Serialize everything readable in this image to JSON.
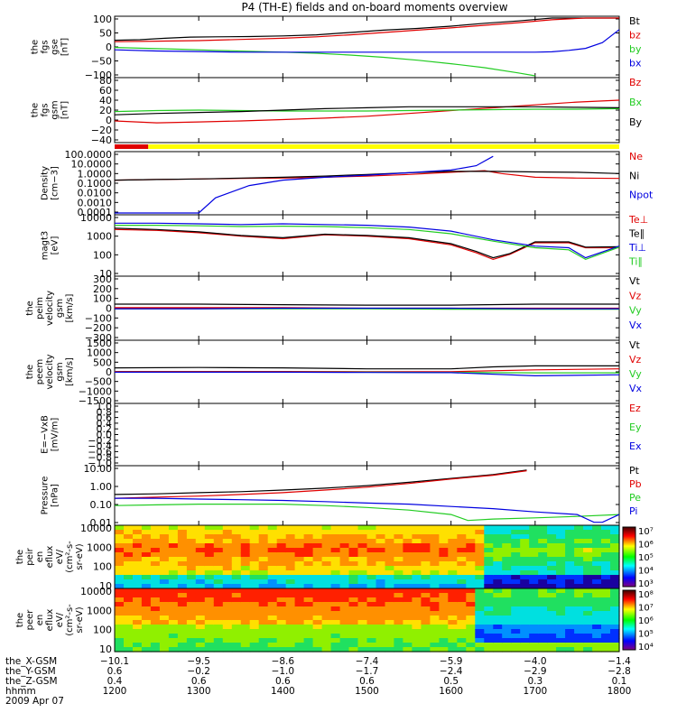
{
  "title": "P4 (TH-E) fields and on-board moments overview",
  "colors": {
    "black": "#000000",
    "red": "#e00000",
    "green": "#22cc22",
    "blue": "#0000e0",
    "yellow": "#ffff00"
  },
  "chart_data": [
    {
      "type": "line",
      "panel": "fgs-gse",
      "ylabel": [
        "the",
        "fgs",
        "gse",
        "[nT]"
      ],
      "ylim": [
        -100,
        100
      ],
      "yticks": [
        "100",
        "50",
        "0",
        "−50",
        "−100"
      ],
      "series": [
        {
          "name": "Bt",
          "color": "#000000",
          "x": [
            1200,
            1230,
            1260,
            1290,
            1320,
            1360,
            1400,
            1440,
            1480,
            1520,
            1560,
            1600,
            1640,
            1680,
            1720,
            1760,
            1790,
            1800
          ],
          "values": [
            23,
            25,
            30,
            34,
            35,
            36,
            38,
            42,
            50,
            58,
            64,
            72,
            82,
            90,
            100,
            110,
            118,
            120
          ]
        },
        {
          "name": "bz",
          "color": "#e00000",
          "x": [
            1200,
            1250,
            1300,
            1350,
            1400,
            1440,
            1480,
            1520,
            1560,
            1600,
            1640,
            1680,
            1720,
            1760,
            1800
          ],
          "values": [
            18,
            20,
            22,
            26,
            30,
            35,
            42,
            50,
            58,
            66,
            75,
            84,
            94,
            104,
            115
          ]
        },
        {
          "name": "by",
          "color": "#22cc22",
          "x": [
            1200,
            1240,
            1280,
            1320,
            1360,
            1400,
            1440,
            1480,
            1520,
            1560,
            1600,
            1640,
            1680,
            1700
          ],
          "values": [
            -2,
            -5,
            -8,
            -12,
            -15,
            -18,
            -22,
            -28,
            -36,
            -46,
            -58,
            -72,
            -90,
            -100
          ]
        },
        {
          "name": "bx",
          "color": "#0000e0",
          "x": [
            1200,
            1250,
            1300,
            1350,
            1400,
            1450,
            1500,
            1550,
            1600,
            1650,
            1700,
            1720,
            1740,
            1760,
            1780,
            1800
          ],
          "values": [
            -10,
            -14,
            -16,
            -18,
            -18,
            -18,
            -18,
            -18,
            -18,
            -18,
            -18,
            -17,
            -12,
            -5,
            15,
            60
          ]
        }
      ]
    },
    {
      "type": "line",
      "panel": "fgs-gsm",
      "ylabel": [
        "the",
        "fgs",
        "gsm",
        "[nT]"
      ],
      "ylim": [
        -50,
        80
      ],
      "yticks": [
        "80",
        "60",
        "40",
        "20",
        "0",
        "−20",
        "−40"
      ],
      "series": [
        {
          "name": "Bz",
          "color": "#e00000",
          "x": [
            1200,
            1250,
            1300,
            1350,
            1400,
            1450,
            1500,
            1550,
            1600,
            1650,
            1700,
            1750,
            1800
          ],
          "values": [
            -8,
            -12,
            -10,
            -8,
            -5,
            -2,
            2,
            8,
            14,
            20,
            26,
            32,
            36
          ]
        },
        {
          "name": "Bx",
          "color": "#22cc22",
          "x": [
            1200,
            1250,
            1300,
            1350,
            1400,
            1450,
            1500,
            1550,
            1600,
            1650,
            1700,
            1750,
            1800
          ],
          "values": [
            12,
            14,
            15,
            14,
            13,
            13,
            13,
            14,
            15,
            16,
            17,
            17,
            18
          ]
        },
        {
          "name": "By",
          "color": "#000000",
          "x": [
            1200,
            1250,
            1300,
            1350,
            1400,
            1450,
            1500,
            1550,
            1600,
            1650,
            1700,
            1750,
            1800
          ],
          "values": [
            5,
            8,
            10,
            12,
            15,
            18,
            20,
            22,
            22,
            22,
            22,
            21,
            20
          ]
        }
      ]
    },
    {
      "type": "line",
      "panel": "density",
      "log": true,
      "ylabel": [
        "Density",
        "[cm−3]"
      ],
      "ylim": [
        0.0001,
        200
      ],
      "yticks": [
        "100.0000",
        "10.0000",
        "1.0000",
        "0.1000",
        "0.0100",
        "0.0010",
        "0.0001"
      ],
      "series": [
        {
          "name": "Ne",
          "color": "#e00000",
          "x": [
            1200,
            1250,
            1300,
            1350,
            1400,
            1450,
            1500,
            1550,
            1600,
            1640,
            1660,
            1700,
            1750,
            1800
          ],
          "values": [
            0.3,
            0.35,
            0.4,
            0.45,
            0.5,
            0.6,
            0.8,
            1.2,
            2,
            3,
            1.5,
            0.6,
            0.5,
            0.45
          ]
        },
        {
          "name": "Ni",
          "color": "#000000",
          "x": [
            1200,
            1250,
            1300,
            1350,
            1400,
            1450,
            1500,
            1550,
            1600,
            1650,
            1700,
            1750,
            1800
          ],
          "values": [
            0.3,
            0.35,
            0.4,
            0.5,
            0.6,
            0.8,
            1.2,
            1.8,
            2.5,
            2.5,
            2.2,
            2.0,
            1.5
          ]
        },
        {
          "name": "Npot",
          "color": "#0000e0",
          "x": [
            1200,
            1260,
            1300,
            1320,
            1360,
            1400,
            1450,
            1500,
            1550,
            1600,
            1630,
            1650
          ],
          "values": [
            0.0001,
            0.0001,
            0.0001,
            0.004,
            0.08,
            0.3,
            0.6,
            1.0,
            1.8,
            3.5,
            10,
            100
          ]
        }
      ]
    },
    {
      "type": "line",
      "panel": "temperature",
      "log": true,
      "ylabel": [
        "magt3",
        "[eV]"
      ],
      "ylim": [
        5,
        15000
      ],
      "yticks": [
        "10000",
        "1000",
        "100",
        "10"
      ],
      "series": [
        {
          "name": "Te⊥",
          "color": "#e00000",
          "x": [
            1200,
            1250,
            1300,
            1350,
            1400,
            1450,
            1500,
            1550,
            1600,
            1630,
            1650,
            1670,
            1700,
            1740,
            1760,
            1800
          ],
          "values": [
            2500,
            2200,
            1600,
            1000,
            700,
            1200,
            1000,
            700,
            300,
            100,
            40,
            80,
            400,
            400,
            200,
            200
          ]
        },
        {
          "name": "Te∥",
          "color": "#000000",
          "x": [
            1200,
            1250,
            1300,
            1350,
            1400,
            1450,
            1500,
            1550,
            1600,
            1630,
            1650,
            1670,
            1700,
            1740,
            1760,
            1800
          ],
          "values": [
            3000,
            2500,
            1800,
            1100,
            800,
            1300,
            1100,
            800,
            350,
            120,
            50,
            90,
            450,
            450,
            220,
            230
          ]
        },
        {
          "name": "Ti⊥",
          "color": "#0000e0",
          "x": [
            1200,
            1250,
            1300,
            1350,
            1400,
            1450,
            1500,
            1550,
            1600,
            1650,
            1700,
            1740,
            1760,
            1800
          ],
          "values": [
            6000,
            6000,
            5500,
            5000,
            5500,
            5000,
            4500,
            3500,
            2000,
            600,
            250,
            200,
            50,
            250
          ]
        },
        {
          "name": "Ti∥",
          "color": "#22cc22",
          "x": [
            1200,
            1250,
            1300,
            1350,
            1400,
            1450,
            1500,
            1550,
            1600,
            1650,
            1700,
            1740,
            1760,
            1800
          ],
          "values": [
            4500,
            4500,
            4200,
            3800,
            4000,
            3800,
            3200,
            2500,
            1400,
            500,
            200,
            150,
            40,
            220
          ]
        }
      ]
    },
    {
      "type": "line",
      "panel": "peim-velocity",
      "ylabel": [
        "the",
        "peim",
        "velocity",
        "gsm",
        "[km/s]"
      ],
      "ylim": [
        -300,
        300
      ],
      "yticks": [
        "300",
        "200",
        "100",
        "0",
        "−100",
        "−200",
        "−300"
      ],
      "series": [
        {
          "name": "Vt",
          "color": "#000000",
          "x": [
            1200,
            1300,
            1400,
            1500,
            1600,
            1700,
            1800
          ],
          "values": [
            40,
            40,
            35,
            30,
            30,
            40,
            40
          ]
        },
        {
          "name": "Vz",
          "color": "#e00000",
          "x": [
            1200,
            1300,
            1400,
            1500,
            1600,
            1700,
            1800
          ],
          "values": [
            5,
            5,
            5,
            0,
            0,
            0,
            0
          ]
        },
        {
          "name": "Vy",
          "color": "#22cc22",
          "x": [
            1200,
            1300,
            1400,
            1500,
            1600,
            1700,
            1800
          ],
          "values": [
            -5,
            -5,
            -5,
            -5,
            -10,
            -10,
            -10
          ]
        },
        {
          "name": "Vx",
          "color": "#0000e0",
          "x": [
            1200,
            1300,
            1400,
            1500,
            1600,
            1700,
            1800
          ],
          "values": [
            -5,
            -5,
            0,
            0,
            0,
            -5,
            -5
          ]
        }
      ]
    },
    {
      "type": "line",
      "panel": "peem-velocity",
      "ylabel": [
        "the",
        "peem",
        "velocity",
        "gsm",
        "[km/s]"
      ],
      "ylim": [
        -1500,
        1500
      ],
      "yticks": [
        "1500",
        "1000",
        "500",
        "0",
        "−500",
        "−1000",
        "−1500"
      ],
      "series": [
        {
          "name": "Vt",
          "color": "#000000",
          "x": [
            1200,
            1300,
            1400,
            1500,
            1600,
            1650,
            1700,
            1800
          ],
          "values": [
            200,
            220,
            200,
            150,
            150,
            250,
            300,
            300
          ]
        },
        {
          "name": "Vz",
          "color": "#e00000",
          "x": [
            1200,
            1300,
            1400,
            1500,
            1600,
            1700,
            1800
          ],
          "values": [
            20,
            20,
            20,
            10,
            10,
            100,
            150
          ]
        },
        {
          "name": "Vy",
          "color": "#22cc22",
          "x": [
            1200,
            1300,
            1400,
            1500,
            1600,
            1700,
            1800
          ],
          "values": [
            -20,
            -20,
            -20,
            -20,
            -30,
            -50,
            -50
          ]
        },
        {
          "name": "Vx",
          "color": "#0000e0",
          "x": [
            1200,
            1300,
            1400,
            1500,
            1600,
            1700,
            1800
          ],
          "values": [
            -20,
            -20,
            -20,
            -30,
            -40,
            -200,
            -150
          ]
        }
      ]
    },
    {
      "type": "line",
      "panel": "efield",
      "ylabel": [
        "E=−VxB",
        "[mV/m]"
      ],
      "ylim": [
        -1,
        1
      ],
      "yticks": [
        "1.0",
        "0.8",
        "0.6",
        "0.4",
        "0.2",
        "0.0",
        "−0.2",
        "−0.4",
        "−0.6",
        "−0.8",
        "−1.0"
      ],
      "series": [
        {
          "name": "Ez",
          "color": "#e00000",
          "x": [],
          "values": []
        },
        {
          "name": "Ey",
          "color": "#22cc22",
          "x": [],
          "values": []
        },
        {
          "name": "Ex",
          "color": "#0000e0",
          "x": [],
          "values": []
        }
      ]
    },
    {
      "type": "line",
      "panel": "pressure",
      "log": true,
      "ylabel": [
        "Pressure",
        "[nPa]"
      ],
      "ylim": [
        0.005,
        30
      ],
      "yticks": [
        "10.00",
        "1.00",
        "0.10",
        "0.01"
      ],
      "series": [
        {
          "name": "Pt",
          "color": "#000000",
          "x": [
            1200,
            1250,
            1300,
            1350,
            1400,
            1450,
            1500,
            1550,
            1600,
            1650,
            1690
          ],
          "values": [
            0.45,
            0.5,
            0.6,
            0.7,
            0.9,
            1.2,
            1.8,
            3,
            5.5,
            10,
            20
          ]
        },
        {
          "name": "Pb",
          "color": "#e00000",
          "x": [
            1200,
            1250,
            1300,
            1350,
            1400,
            1450,
            1500,
            1550,
            1600,
            1650,
            1690
          ],
          "values": [
            0.25,
            0.3,
            0.35,
            0.45,
            0.6,
            0.9,
            1.4,
            2.5,
            5,
            9,
            18
          ]
        },
        {
          "name": "Pe",
          "color": "#22cc22",
          "x": [
            1200,
            1250,
            1300,
            1350,
            1400,
            1450,
            1500,
            1550,
            1600,
            1620,
            1650,
            1700,
            1750,
            1800
          ],
          "values": [
            0.08,
            0.09,
            0.1,
            0.1,
            0.1,
            0.08,
            0.06,
            0.04,
            0.02,
            0.008,
            0.01,
            0.012,
            0.015,
            0.02
          ]
        },
        {
          "name": "Pi",
          "color": "#0000e0",
          "x": [
            1200,
            1250,
            1300,
            1350,
            1400,
            1450,
            1500,
            1550,
            1600,
            1650,
            1700,
            1750,
            1770,
            1780,
            1800
          ],
          "values": [
            0.25,
            0.25,
            0.22,
            0.2,
            0.18,
            0.15,
            0.12,
            0.1,
            0.07,
            0.05,
            0.03,
            0.02,
            0.006,
            0.006,
            0.02
          ]
        }
      ]
    },
    {
      "type": "heatmap",
      "panel": "peir-eflux",
      "ylabel": [
        "the",
        "peir",
        "en",
        "eflux",
        "eV/",
        "(cm²-s-",
        "sr-eV)"
      ],
      "yticks": [
        "10000",
        "1000",
        "100",
        "10"
      ],
      "colorbar": {
        "ticks": [
          "10⁷",
          "10⁶",
          "10⁵",
          "10⁴",
          "10³"
        ]
      }
    },
    {
      "type": "heatmap",
      "panel": "peer-eflux",
      "ylabel": [
        "the",
        "peer",
        "en",
        "eflux",
        "eV/",
        "(cm²-s-",
        "sr-eV)"
      ],
      "yticks": [
        "10000",
        "1000",
        "100",
        "10"
      ],
      "colorbar": {
        "ticks": [
          "10⁸",
          "10⁷",
          "10⁶",
          "10⁵",
          "10⁴"
        ]
      }
    }
  ],
  "xaxis": {
    "ticks": [
      1200,
      1300,
      1400,
      1500,
      1600,
      1700,
      1800
    ],
    "rows": [
      {
        "label": "the_X-GSM",
        "values": [
          "−10.1",
          "−9.5",
          "−8.6",
          "−7.4",
          "−5.9",
          "−4.0",
          "−1.4"
        ]
      },
      {
        "label": "the_Y-GSM",
        "values": [
          "0.6",
          "−0.2",
          "−1.0",
          "−1.7",
          "−2.4",
          "−2.9",
          "−2.8"
        ]
      },
      {
        "label": "the_Z-GSM",
        "values": [
          "0.4",
          "0.6",
          "0.6",
          "0.6",
          "0.5",
          "0.3",
          "0.1"
        ]
      },
      {
        "label": "hhmm",
        "values": [
          "1200",
          "1300",
          "1400",
          "1500",
          "1600",
          "1700",
          "1800"
        ]
      }
    ],
    "date": "2009 Apr 07"
  }
}
